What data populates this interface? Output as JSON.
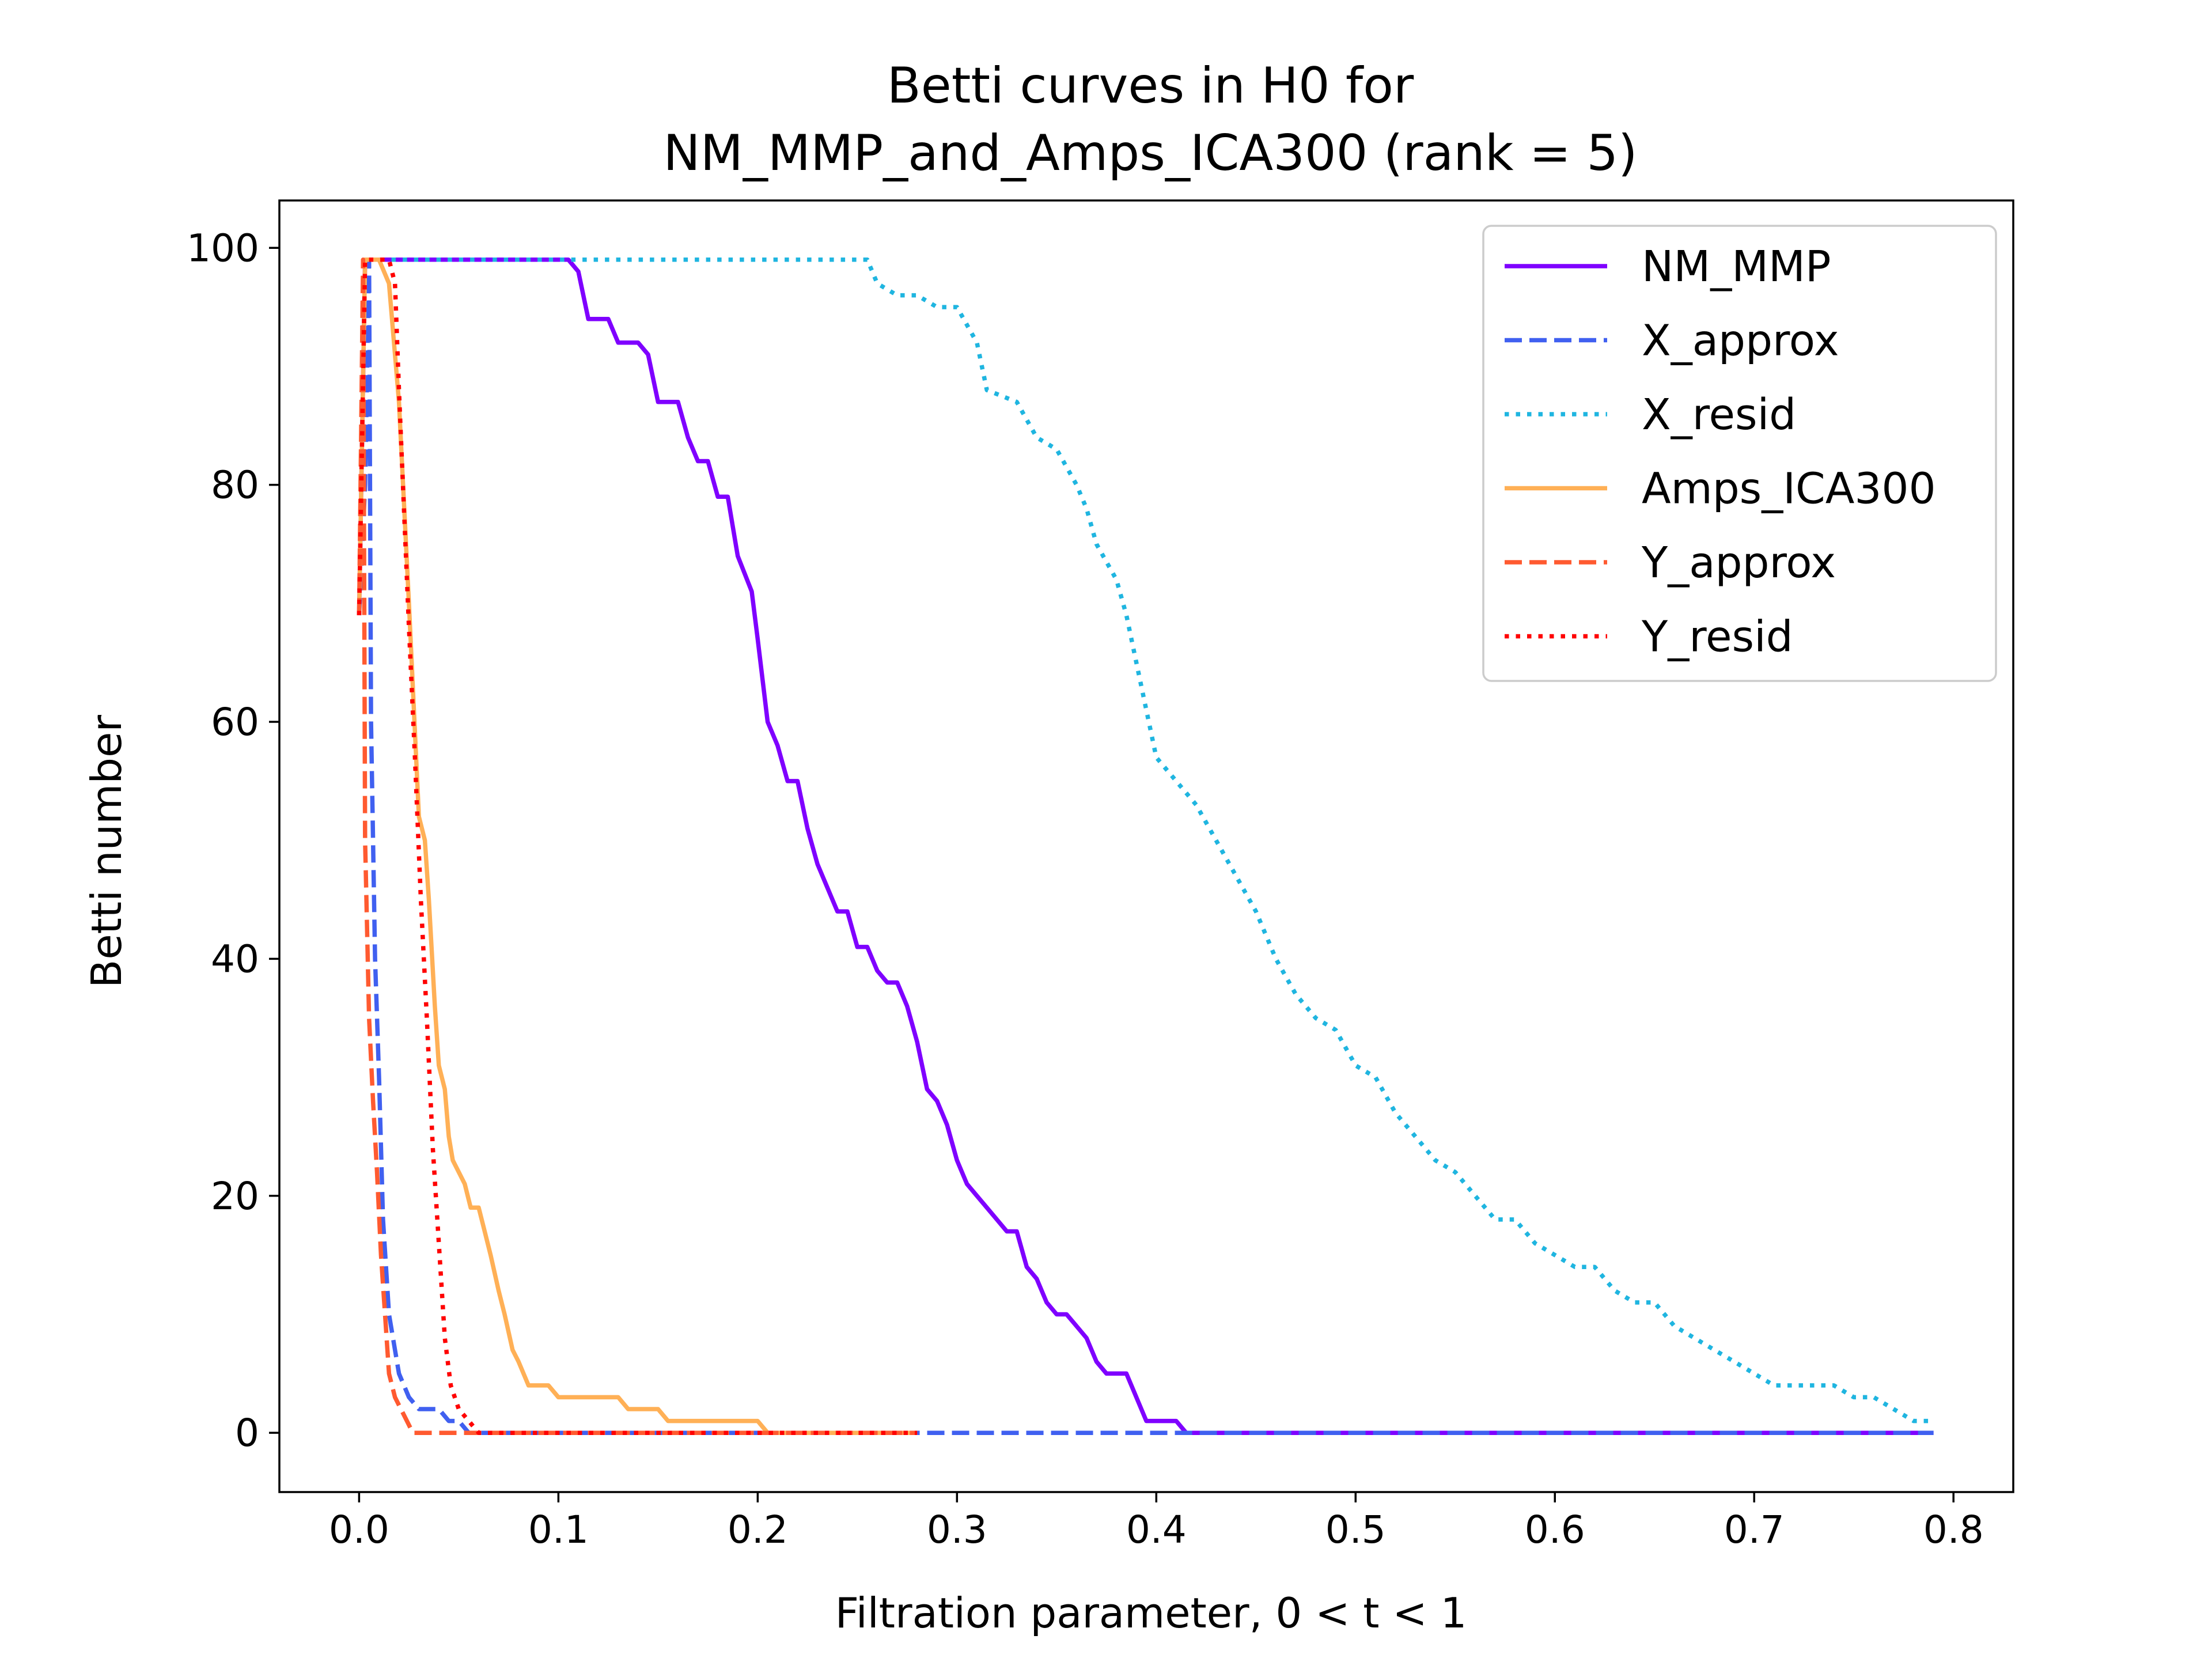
{
  "chart_data": {
    "type": "line",
    "title_line1": "Betti curves in H0 for",
    "title_line2": "NM_MMP_and_Amps_ICA300 (rank = 5)",
    "xlabel": "Filtration parameter, 0 < t < 1",
    "ylabel": "Betti number",
    "xlim": [
      -0.04,
      0.83
    ],
    "ylim": [
      -5,
      104
    ],
    "xticks": [
      0.0,
      0.1,
      0.2,
      0.3,
      0.4,
      0.5,
      0.6,
      0.7,
      0.8
    ],
    "xtick_labels": [
      "0.0",
      "0.1",
      "0.2",
      "0.3",
      "0.4",
      "0.5",
      "0.6",
      "0.7",
      "0.8"
    ],
    "yticks": [
      0,
      20,
      40,
      60,
      80,
      100
    ],
    "ytick_labels": [
      "0",
      "20",
      "40",
      "60",
      "80",
      "100"
    ],
    "grid": false,
    "legend_position": "top-right",
    "series": [
      {
        "name": "NM_MMP",
        "color": "#7f00ff",
        "dash": "solid",
        "points": [
          [
            0.0,
            69
          ],
          [
            0.003,
            99
          ],
          [
            0.105,
            99
          ],
          [
            0.11,
            98
          ],
          [
            0.115,
            94
          ],
          [
            0.125,
            94
          ],
          [
            0.13,
            92
          ],
          [
            0.14,
            92
          ],
          [
            0.145,
            91
          ],
          [
            0.15,
            87
          ],
          [
            0.16,
            87
          ],
          [
            0.165,
            84
          ],
          [
            0.17,
            82
          ],
          [
            0.175,
            82
          ],
          [
            0.18,
            79
          ],
          [
            0.185,
            79
          ],
          [
            0.19,
            74
          ],
          [
            0.197,
            71
          ],
          [
            0.2,
            67
          ],
          [
            0.205,
            60
          ],
          [
            0.21,
            58
          ],
          [
            0.215,
            55
          ],
          [
            0.22,
            55
          ],
          [
            0.225,
            51
          ],
          [
            0.23,
            48
          ],
          [
            0.235,
            46
          ],
          [
            0.24,
            44
          ],
          [
            0.245,
            44
          ],
          [
            0.25,
            41
          ],
          [
            0.255,
            41
          ],
          [
            0.26,
            39
          ],
          [
            0.265,
            38
          ],
          [
            0.27,
            38
          ],
          [
            0.275,
            36
          ],
          [
            0.28,
            33
          ],
          [
            0.285,
            29
          ],
          [
            0.29,
            28
          ],
          [
            0.295,
            26
          ],
          [
            0.3,
            23
          ],
          [
            0.305,
            21
          ],
          [
            0.31,
            20
          ],
          [
            0.315,
            19
          ],
          [
            0.32,
            18
          ],
          [
            0.325,
            17
          ],
          [
            0.33,
            17
          ],
          [
            0.335,
            14
          ],
          [
            0.34,
            13
          ],
          [
            0.345,
            11
          ],
          [
            0.35,
            10
          ],
          [
            0.355,
            10
          ],
          [
            0.36,
            9
          ],
          [
            0.365,
            8
          ],
          [
            0.37,
            6
          ],
          [
            0.375,
            5
          ],
          [
            0.38,
            5
          ],
          [
            0.385,
            5
          ],
          [
            0.39,
            3
          ],
          [
            0.395,
            1
          ],
          [
            0.41,
            1
          ],
          [
            0.415,
            0
          ],
          [
            0.79,
            0
          ]
        ]
      },
      {
        "name": "X_approx",
        "color": "#4060f0",
        "dash": "dashed",
        "points": [
          [
            0.0,
            69
          ],
          [
            0.003,
            80
          ],
          [
            0.005,
            99
          ],
          [
            0.006,
            60
          ],
          [
            0.008,
            40
          ],
          [
            0.01,
            30
          ],
          [
            0.012,
            18
          ],
          [
            0.015,
            10
          ],
          [
            0.018,
            7
          ],
          [
            0.02,
            5
          ],
          [
            0.025,
            3
          ],
          [
            0.03,
            2
          ],
          [
            0.04,
            2
          ],
          [
            0.045,
            1
          ],
          [
            0.05,
            1
          ],
          [
            0.055,
            0
          ],
          [
            0.79,
            0
          ]
        ]
      },
      {
        "name": "X_resid",
        "color": "#1fb5e0",
        "dash": "dotted",
        "points": [
          [
            0.0,
            69
          ],
          [
            0.003,
            99
          ],
          [
            0.255,
            99
          ],
          [
            0.26,
            97
          ],
          [
            0.27,
            96
          ],
          [
            0.28,
            96
          ],
          [
            0.29,
            95
          ],
          [
            0.3,
            95
          ],
          [
            0.31,
            92
          ],
          [
            0.315,
            88
          ],
          [
            0.33,
            87
          ],
          [
            0.34,
            84
          ],
          [
            0.35,
            83
          ],
          [
            0.36,
            80
          ],
          [
            0.365,
            78
          ],
          [
            0.37,
            75
          ],
          [
            0.38,
            72
          ],
          [
            0.385,
            69
          ],
          [
            0.39,
            65
          ],
          [
            0.395,
            61
          ],
          [
            0.4,
            57
          ],
          [
            0.41,
            55
          ],
          [
            0.415,
            54
          ],
          [
            0.42,
            53
          ],
          [
            0.43,
            50
          ],
          [
            0.44,
            47
          ],
          [
            0.45,
            44
          ],
          [
            0.46,
            40
          ],
          [
            0.47,
            37
          ],
          [
            0.48,
            35
          ],
          [
            0.49,
            34
          ],
          [
            0.5,
            31
          ],
          [
            0.51,
            30
          ],
          [
            0.52,
            27
          ],
          [
            0.53,
            25
          ],
          [
            0.54,
            23
          ],
          [
            0.55,
            22
          ],
          [
            0.56,
            20
          ],
          [
            0.57,
            18
          ],
          [
            0.58,
            18
          ],
          [
            0.59,
            16
          ],
          [
            0.6,
            15
          ],
          [
            0.61,
            14
          ],
          [
            0.62,
            14
          ],
          [
            0.63,
            12
          ],
          [
            0.64,
            11
          ],
          [
            0.65,
            11
          ],
          [
            0.66,
            9
          ],
          [
            0.67,
            8
          ],
          [
            0.68,
            7
          ],
          [
            0.69,
            6
          ],
          [
            0.7,
            5
          ],
          [
            0.71,
            4
          ],
          [
            0.74,
            4
          ],
          [
            0.75,
            3
          ],
          [
            0.76,
            3
          ],
          [
            0.77,
            2
          ],
          [
            0.78,
            1
          ],
          [
            0.79,
            1
          ]
        ]
      },
      {
        "name": "Amps_ICA300",
        "color": "#ffb056",
        "dash": "solid",
        "points": [
          [
            0.0,
            69
          ],
          [
            0.003,
            99
          ],
          [
            0.01,
            99
          ],
          [
            0.015,
            97
          ],
          [
            0.02,
            87
          ],
          [
            0.025,
            70
          ],
          [
            0.03,
            52
          ],
          [
            0.033,
            50
          ],
          [
            0.035,
            45
          ],
          [
            0.038,
            36
          ],
          [
            0.04,
            31
          ],
          [
            0.043,
            29
          ],
          [
            0.045,
            25
          ],
          [
            0.047,
            23
          ],
          [
            0.05,
            22
          ],
          [
            0.053,
            21
          ],
          [
            0.056,
            19
          ],
          [
            0.06,
            19
          ],
          [
            0.063,
            17
          ],
          [
            0.066,
            15
          ],
          [
            0.07,
            12
          ],
          [
            0.073,
            10
          ],
          [
            0.077,
            7
          ],
          [
            0.08,
            6
          ],
          [
            0.085,
            4
          ],
          [
            0.095,
            4
          ],
          [
            0.1,
            3
          ],
          [
            0.13,
            3
          ],
          [
            0.135,
            2
          ],
          [
            0.15,
            2
          ],
          [
            0.155,
            1
          ],
          [
            0.2,
            1
          ],
          [
            0.205,
            0
          ],
          [
            0.28,
            0
          ]
        ]
      },
      {
        "name": "Y_approx",
        "color": "#ff5a30",
        "dash": "dashed",
        "points": [
          [
            0.0,
            69
          ],
          [
            0.002,
            99
          ],
          [
            0.003,
            50
          ],
          [
            0.005,
            35
          ],
          [
            0.007,
            28
          ],
          [
            0.009,
            22
          ],
          [
            0.011,
            15
          ],
          [
            0.013,
            10
          ],
          [
            0.015,
            5
          ],
          [
            0.018,
            3
          ],
          [
            0.021,
            2
          ],
          [
            0.024,
            1
          ],
          [
            0.027,
            0
          ],
          [
            0.28,
            0
          ]
        ]
      },
      {
        "name": "Y_resid",
        "color": "#ff0000",
        "dash": "dotted",
        "points": [
          [
            0.0,
            69
          ],
          [
            0.003,
            99
          ],
          [
            0.015,
            99
          ],
          [
            0.018,
            97
          ],
          [
            0.02,
            88
          ],
          [
            0.022,
            80
          ],
          [
            0.025,
            68
          ],
          [
            0.028,
            57
          ],
          [
            0.031,
            45
          ],
          [
            0.034,
            35
          ],
          [
            0.037,
            24
          ],
          [
            0.04,
            16
          ],
          [
            0.043,
            8
          ],
          [
            0.046,
            4
          ],
          [
            0.05,
            2
          ],
          [
            0.055,
            1
          ],
          [
            0.06,
            0
          ],
          [
            0.28,
            0
          ]
        ]
      }
    ]
  }
}
